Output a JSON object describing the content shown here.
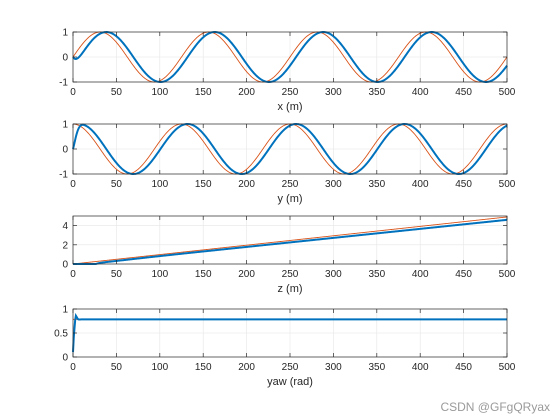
{
  "chart_data": [
    {
      "type": "line",
      "xlabel": "x (m)",
      "xlim": [
        0,
        500
      ],
      "ylim": [
        -1,
        1
      ],
      "xticks": [
        0,
        50,
        100,
        150,
        200,
        250,
        300,
        350,
        400,
        450,
        500
      ],
      "yticks": [
        -1,
        0,
        1
      ],
      "grid": true,
      "series": [
        {
          "color": "#d95319",
          "kind": "reference",
          "formula": "sin(2*pi*t/125)",
          "values_sampled": [
            [
              0,
              0
            ],
            [
              31.25,
              1
            ],
            [
              62.5,
              0
            ],
            [
              93.75,
              -1
            ],
            [
              125,
              0
            ],
            [
              156.25,
              1
            ],
            [
              218.75,
              -1
            ],
            [
              281.25,
              1
            ],
            [
              343.75,
              -1
            ],
            [
              406.25,
              1
            ],
            [
              468.75,
              -1
            ],
            [
              500,
              0
            ]
          ]
        },
        {
          "color": "#0072bd",
          "kind": "actual",
          "values_sampled": [
            [
              0,
              0
            ],
            [
              5,
              0.02
            ],
            [
              12,
              0.25
            ],
            [
              25,
              0.8
            ],
            [
              38,
              1
            ],
            [
              100,
              -1
            ],
            [
              163,
              1
            ],
            [
              225,
              -1
            ],
            [
              288,
              1
            ],
            [
              350,
              -1
            ],
            [
              413,
              1
            ],
            [
              475,
              -1
            ],
            [
              500,
              -0.7
            ]
          ]
        }
      ]
    },
    {
      "type": "line",
      "xlabel": "y (m)",
      "xlim": [
        0,
        500
      ],
      "ylim": [
        -1,
        1
      ],
      "xticks": [
        0,
        50,
        100,
        150,
        200,
        250,
        300,
        350,
        400,
        450,
        500
      ],
      "yticks": [
        -1,
        0,
        1
      ],
      "grid": true,
      "series": [
        {
          "color": "#d95319",
          "kind": "reference",
          "formula": "cos(2*pi*t/125)",
          "values_sampled": [
            [
              0,
              1
            ],
            [
              62.5,
              -1
            ],
            [
              125,
              1
            ],
            [
              187.5,
              -1
            ],
            [
              250,
              1
            ],
            [
              312.5,
              -1
            ],
            [
              375,
              1
            ],
            [
              437.5,
              -1
            ],
            [
              500,
              1
            ]
          ]
        },
        {
          "color": "#0072bd",
          "kind": "actual",
          "values_sampled": [
            [
              0,
              0
            ],
            [
              3,
              0.05
            ],
            [
              8,
              0.6
            ],
            [
              13,
              0.97
            ],
            [
              20,
              0.7
            ],
            [
              69,
              -1
            ],
            [
              132,
              1
            ],
            [
              194,
              -1
            ],
            [
              257,
              1
            ],
            [
              319,
              -1
            ],
            [
              382,
              1
            ],
            [
              444,
              -1
            ],
            [
              500,
              0.8
            ]
          ]
        }
      ]
    },
    {
      "type": "line",
      "xlabel": "z (m)",
      "xlim": [
        0,
        500
      ],
      "ylim": [
        0,
        5
      ],
      "xticks": [
        0,
        50,
        100,
        150,
        200,
        250,
        300,
        350,
        400,
        450,
        500
      ],
      "yticks": [
        0,
        2,
        4
      ],
      "grid": true,
      "series": [
        {
          "color": "#d95319",
          "kind": "reference",
          "values_sampled": [
            [
              0,
              0
            ],
            [
              500,
              4.9
            ]
          ]
        },
        {
          "color": "#0072bd",
          "kind": "actual",
          "values_sampled": [
            [
              0,
              0
            ],
            [
              5,
              -0.15
            ],
            [
              15,
              -0.3
            ],
            [
              30,
              -0.2
            ],
            [
              100,
              0.7
            ],
            [
              200,
              1.75
            ],
            [
              300,
              2.7
            ],
            [
              400,
              3.65
            ],
            [
              500,
              4.6
            ]
          ]
        }
      ]
    },
    {
      "type": "line",
      "xlabel": "yaw (rad)",
      "xlim": [
        0,
        500
      ],
      "ylim": [
        0,
        1
      ],
      "xticks": [
        0,
        50,
        100,
        150,
        200,
        250,
        300,
        350,
        400,
        450,
        500
      ],
      "yticks": [
        0,
        0.5,
        1
      ],
      "grid": true,
      "series": [
        {
          "color": "#d95319",
          "kind": "reference",
          "values_sampled": [
            [
              0,
              0.785
            ],
            [
              500,
              0.785
            ]
          ]
        },
        {
          "color": "#0072bd",
          "kind": "actual",
          "values_sampled": [
            [
              0,
              0.1
            ],
            [
              1,
              0.45
            ],
            [
              2,
              0.8
            ],
            [
              3,
              0.87
            ],
            [
              4,
              0.8
            ],
            [
              5,
              0.76
            ],
            [
              6,
              0.78
            ],
            [
              500,
              0.785
            ]
          ]
        }
      ]
    }
  ],
  "watermark": "CSDN @GFgQRyax"
}
